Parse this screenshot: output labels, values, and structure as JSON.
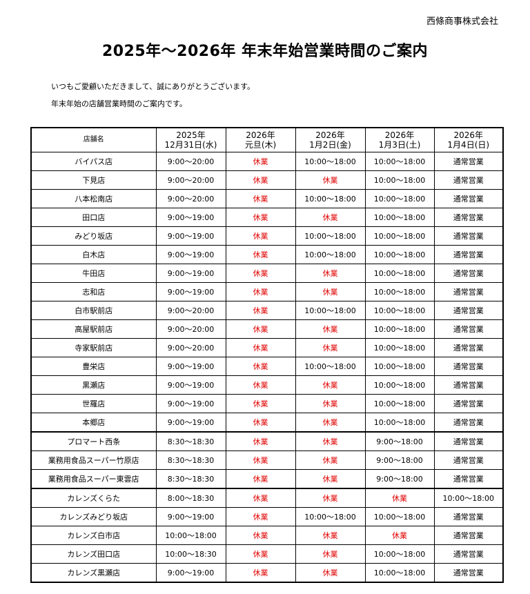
{
  "company": "西條商事株式会社",
  "title": "2025年～2026年 年末年始営業時間のご案内",
  "intro": [
    "いつもご愛顧いただきまして、誠にありがとうございます。",
    "年末年始の店舗営業時間のご案内です。"
  ],
  "colors": {
    "closed": "#e00000"
  },
  "table": {
    "headers": [
      [
        "店舗名"
      ],
      [
        "2025年",
        "12月31日(水)"
      ],
      [
        "2026年",
        "元旦(木)"
      ],
      [
        "2026年",
        "1月2日(金)"
      ],
      [
        "2026年",
        "1月3日(土)"
      ],
      [
        "2026年",
        "1月4日(日)"
      ]
    ],
    "rows": [
      [
        "バイパス店",
        "9:00～20:00",
        "休業",
        "10:00～18:00",
        "10:00～18:00",
        "通常営業"
      ],
      [
        "下見店",
        "9:00～20:00",
        "休業",
        "休業",
        "10:00～18:00",
        "通常営業"
      ],
      [
        "八本松南店",
        "9:00～20:00",
        "休業",
        "10:00～18:00",
        "10:00～18:00",
        "通常営業"
      ],
      [
        "田口店",
        "9:00～19:00",
        "休業",
        "休業",
        "10:00～18:00",
        "通常営業"
      ],
      [
        "みどり坂店",
        "9:00～19:00",
        "休業",
        "10:00～18:00",
        "10:00～18:00",
        "通常営業"
      ],
      [
        "白木店",
        "9:00～19:00",
        "休業",
        "10:00～18:00",
        "10:00～18:00",
        "通常営業"
      ],
      [
        "牛田店",
        "9:00～19:00",
        "休業",
        "休業",
        "10:00～18:00",
        "通常営業"
      ],
      [
        "志和店",
        "9:00～19:00",
        "休業",
        "休業",
        "10:00～18:00",
        "通常営業"
      ],
      [
        "白市駅前店",
        "9:00～20:00",
        "休業",
        "10:00～18:00",
        "10:00～18:00",
        "通常営業"
      ],
      [
        "高屋駅前店",
        "9:00～20:00",
        "休業",
        "休業",
        "10:00～18:00",
        "通常営業"
      ],
      [
        "寺家駅前店",
        "9:00～20:00",
        "休業",
        "休業",
        "10:00～18:00",
        "通常営業"
      ],
      [
        "豊栄店",
        "9:00～19:00",
        "休業",
        "10:00～18:00",
        "10:00～18:00",
        "通常営業"
      ],
      [
        "黒瀬店",
        "9:00～19:00",
        "休業",
        "休業",
        "10:00～18:00",
        "通常営業"
      ],
      [
        "世羅店",
        "9:00～19:00",
        "休業",
        "休業",
        "10:00～18:00",
        "通常営業"
      ],
      [
        "本郷店",
        "9:00～19:00",
        "休業",
        "休業",
        "10:00～18:00",
        "通常営業"
      ],
      [
        "プロマート西条",
        "8:30～18:30",
        "休業",
        "休業",
        "9:00～18:00",
        "通常営業"
      ],
      [
        "業務用食品スーパー竹原店",
        "8:30～18:30",
        "休業",
        "休業",
        "9:00～18:00",
        "通常営業"
      ],
      [
        "業務用食品スーパー東雲店",
        "8:30～18:30",
        "休業",
        "休業",
        "9:00～18:00",
        "通常営業"
      ],
      [
        "カレンズくらた",
        "8:00～18:30",
        "休業",
        "休業",
        "休業",
        "10:00～18:00"
      ],
      [
        "カレンズみどり坂店",
        "9:00～19:00",
        "休業",
        "10:00～18:00",
        "10:00～18:00",
        "通常営業"
      ],
      [
        "カレンズ白市店",
        "10:00～18:00",
        "休業",
        "休業",
        "休業",
        "通常営業"
      ],
      [
        "カレンズ田口店",
        "10:00～18:30",
        "休業",
        "休業",
        "10:00～18:00",
        "通常営業"
      ],
      [
        "カレンズ黒瀬店",
        "9:00～19:00",
        "休業",
        "休業",
        "10:00～18:00",
        "通常営業"
      ]
    ],
    "group_ends": [
      "本郷店",
      "業務用食品スーパー東雲店"
    ]
  }
}
